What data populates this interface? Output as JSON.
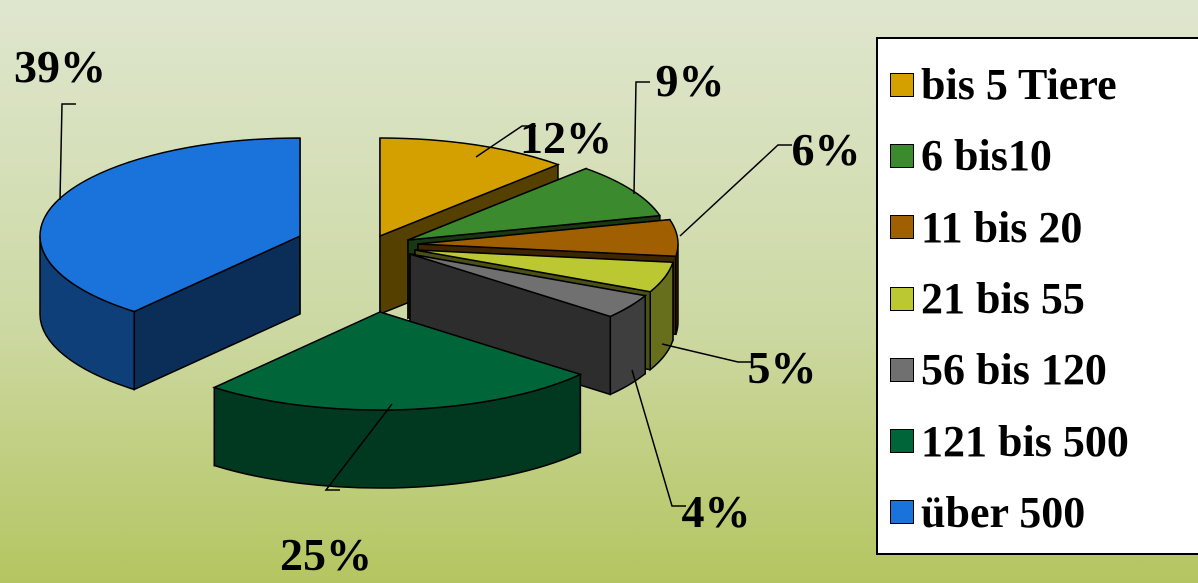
{
  "chart_data": {
    "type": "pie",
    "title": "",
    "slices": [
      {
        "label": "bis 5 Tiere",
        "value": 12,
        "value_label": "12%",
        "color": "#d4a000",
        "exploded": true
      },
      {
        "label": "6 bis10",
        "value": 9,
        "value_label": "9%",
        "color": "#3c8a2e",
        "exploded": true
      },
      {
        "label": "11 bis 20",
        "value": 6,
        "value_label": "6%",
        "color": "#a05f00",
        "exploded": true
      },
      {
        "label": "21 bis 55",
        "value": 5,
        "value_label": "5%",
        "color": "#bcc832",
        "exploded": true
      },
      {
        "label": "56 bis 120",
        "value": 4,
        "value_label": "4%",
        "color": "#707070",
        "exploded": true
      },
      {
        "label": "121 bis 500",
        "value": 25,
        "value_label": "25%",
        "color": "#00663a",
        "exploded": true
      },
      {
        "label": "über 500",
        "value": 39,
        "value_label": "39%",
        "color": "#1a73db",
        "exploded": true
      }
    ],
    "legend_position": "right",
    "style": "3d-exploded"
  }
}
